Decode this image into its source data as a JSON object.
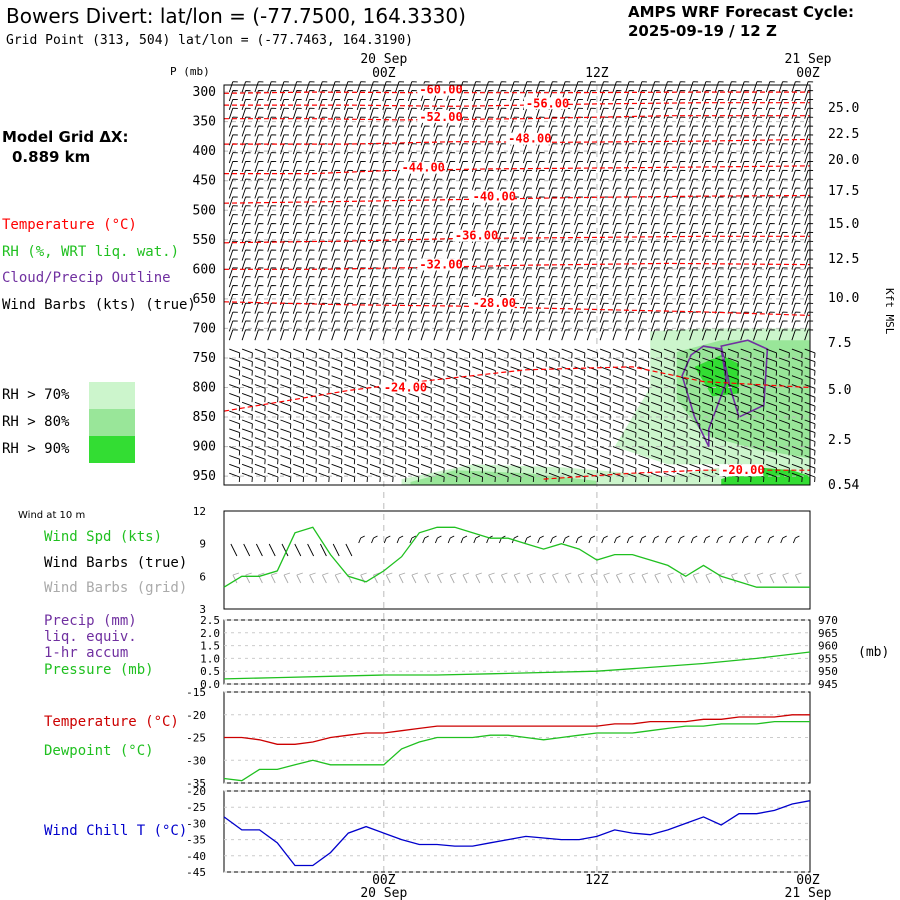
{
  "header": {
    "title": "Bowers Divert:  lat/lon = (-77.7500, 164.3330)",
    "subtitle": "Grid Point (313, 504) lat/lon = (-77.7463, 164.3190)",
    "cycle_line1": "AMPS WRF Forecast Cycle:",
    "cycle_line2": "2025-09-19 / 12  Z"
  },
  "model_grid": {
    "label": "Model Grid ΔX:",
    "value": "0.889 km"
  },
  "legend": {
    "temperature": "Temperature (°C)",
    "rh": "RH (%, WRT liq. wat.)",
    "cloud": "Cloud/Precip Outline",
    "wind": "Wind Barbs (kts) (true)",
    "rh70": "RH > 70%",
    "rh80": "RH > 80%",
    "rh90": "RH > 90%"
  },
  "colors": {
    "temperature": "#ff0000",
    "rh": "#20c020",
    "cloud": "#7030a0",
    "wind_chill": "#0000cc",
    "grid_barbs": "#aaaaaa",
    "rh70": "#ccf5cc",
    "rh80": "#99e699",
    "rh90": "#33dd33"
  },
  "time_axis": {
    "top_date_left": "20 Sep",
    "top_date_right": "21 Sep",
    "bottom_date_left": "20 Sep",
    "bottom_date_right": "21 Sep",
    "ticks": [
      {
        "hours": 12,
        "label": "00Z"
      },
      {
        "hours": 24,
        "label": "12Z"
      },
      {
        "hours": 36,
        "label": "00Z"
      }
    ]
  },
  "chart_data": [
    {
      "type": "contour",
      "panel": "cross-section",
      "ylabel": "P (mb)",
      "ylabel_right": "Kft MSL",
      "xlim_hours": [
        3,
        36
      ],
      "pressure_ticks": [
        300,
        350,
        400,
        450,
        500,
        550,
        600,
        650,
        700,
        750,
        800,
        850,
        900,
        950
      ],
      "height_ticks": [
        "25.0",
        "22.5",
        "20.0",
        "17.5",
        "15.0",
        "12.5",
        "10.0",
        "7.5",
        "5.0",
        "2.5",
        "0.54"
      ],
      "temperature_contours": [
        {
          "label": "-60.00",
          "p": [
            [
              3,
              302
            ],
            [
              8,
              300
            ],
            [
              14,
              301
            ],
            [
              22,
              301
            ],
            [
              30,
              300
            ],
            [
              36,
              300
            ]
          ],
          "label_at": [
            14,
            301
          ]
        },
        {
          "label": "-56.00",
          "p": [
            [
              3,
              322
            ],
            [
              10,
              322
            ],
            [
              16,
              324
            ],
            [
              24,
              320
            ],
            [
              30,
              318
            ],
            [
              36,
              318
            ]
          ],
          "label_at": [
            20,
            324
          ]
        },
        {
          "label": "-52.00",
          "p": [
            [
              3,
              345
            ],
            [
              8,
              345
            ],
            [
              13,
              347
            ],
            [
              20,
              345
            ],
            [
              28,
              340
            ],
            [
              36,
              340
            ]
          ],
          "label_at": [
            14,
            347
          ]
        },
        {
          "label": "-48.00",
          "p": [
            [
              3,
              388
            ],
            [
              10,
              388
            ],
            [
              16,
              384
            ],
            [
              22,
              385
            ],
            [
              30,
              383
            ],
            [
              36,
              380
            ]
          ],
          "label_at": [
            19,
            384
          ]
        },
        {
          "label": "-44.00",
          "p": [
            [
              3,
              438
            ],
            [
              8,
              438
            ],
            [
              12,
              433
            ],
            [
              18,
              430
            ],
            [
              26,
              428
            ],
            [
              36,
              425
            ]
          ],
          "label_at": [
            13,
            433
          ]
        },
        {
          "label": "-40.00",
          "p": [
            [
              3,
              488
            ],
            [
              10,
              485
            ],
            [
              16,
              482
            ],
            [
              24,
              478
            ],
            [
              30,
              476
            ],
            [
              36,
              475
            ]
          ],
          "label_at": [
            17,
            482
          ]
        },
        {
          "label": "-36.00",
          "p": [
            [
              3,
              555
            ],
            [
              10,
              552
            ],
            [
              16,
              548
            ],
            [
              24,
              546
            ],
            [
              30,
              544
            ],
            [
              36,
              544
            ]
          ],
          "label_at": [
            16,
            548
          ]
        },
        {
          "label": "-32.00",
          "p": [
            [
              3,
              600
            ],
            [
              8,
              600
            ],
            [
              14,
              597
            ],
            [
              20,
              593
            ],
            [
              28,
              590
            ],
            [
              36,
              592
            ]
          ],
          "label_at": [
            14,
            597
          ]
        },
        {
          "label": "-28.00",
          "p": [
            [
              3,
              655
            ],
            [
              10,
              660
            ],
            [
              16,
              662
            ],
            [
              24,
              668
            ],
            [
              30,
              672
            ],
            [
              36,
              678
            ]
          ],
          "label_at": [
            17,
            662
          ]
        },
        {
          "label": "-24.00",
          "p": [
            [
              3,
              840
            ],
            [
              6,
              825
            ],
            [
              10,
              805
            ],
            [
              14,
              790
            ],
            [
              20,
              770
            ],
            [
              26,
              765
            ],
            [
              30,
              790
            ],
            [
              36,
              800
            ]
          ],
          "label_at": [
            12,
            805
          ]
        },
        {
          "label": "-20.00",
          "p": [
            [
              21,
              955
            ],
            [
              26,
              945
            ],
            [
              30,
              940
            ],
            [
              36,
              940
            ]
          ],
          "label_at": [
            31,
            945
          ]
        }
      ],
      "rh_shading_levels": [
        70,
        80,
        90
      ],
      "cloud_outline_levels": "closed contours near hour 30-33, 700-900 mb"
    },
    {
      "type": "line",
      "panel": "wind-10m",
      "title": "Wind at 10 m",
      "xlim_hours": [
        3,
        36
      ],
      "ylim": [
        3,
        12
      ],
      "yticks": [
        3,
        6,
        9,
        12
      ],
      "series": [
        {
          "name": "Wind Spd (kts)",
          "x": [
            3,
            4,
            5,
            6,
            7,
            8,
            9,
            10,
            11,
            12,
            13,
            14,
            15,
            16,
            17,
            18,
            19,
            20,
            21,
            22,
            23,
            24,
            25,
            26,
            27,
            28,
            29,
            30,
            31,
            32,
            33,
            34,
            35,
            36
          ],
          "values": [
            5.0,
            6.0,
            6.0,
            6.5,
            10.0,
            10.5,
            8.0,
            6.0,
            5.5,
            6.5,
            7.8,
            10.0,
            10.5,
            10.5,
            10.0,
            9.5,
            9.5,
            9.0,
            8.5,
            9.0,
            8.5,
            7.5,
            8.0,
            8.0,
            7.5,
            7.0,
            6.0,
            7.0,
            6.0,
            5.5,
            5.0,
            5.0,
            5.0,
            5.0
          ]
        }
      ],
      "legend": [
        "Wind Spd (kts)",
        "Wind Barbs (true)",
        "Wind Barbs (grid)"
      ]
    },
    {
      "type": "line",
      "panel": "precip-pressure",
      "xlim_hours": [
        3,
        36
      ],
      "ylim_left": [
        0.0,
        2.5
      ],
      "yticks_left": [
        "0.0",
        "0.5",
        "1.0",
        "1.5",
        "2.0",
        "2.5"
      ],
      "ylim_right": [
        945,
        970
      ],
      "yticks_right": [
        "945",
        "950",
        "955",
        "960",
        "965",
        "970"
      ],
      "ylabel_right": "(mb)",
      "series": [
        {
          "name": "Pressure (mb)",
          "x": [
            3,
            6,
            9,
            12,
            15,
            18,
            21,
            24,
            27,
            30,
            33,
            36
          ],
          "values": [
            947.0,
            947.5,
            948.0,
            948.5,
            948.5,
            949.0,
            949.5,
            950.0,
            951.5,
            953.0,
            955.0,
            957.5
          ]
        }
      ],
      "legend": [
        "Precip (mm)",
        "liq. equiv.",
        "1-hr accum",
        "Pressure (mb)"
      ]
    },
    {
      "type": "line",
      "panel": "temperature-dewpoint",
      "xlim_hours": [
        3,
        36
      ],
      "ylim": [
        -35,
        -15
      ],
      "yticks": [
        -35,
        -30,
        -25,
        -20,
        -15
      ],
      "series": [
        {
          "name": "Temperature (°C)",
          "x": [
            3,
            4,
            5,
            6,
            7,
            8,
            9,
            10,
            11,
            12,
            13,
            14,
            15,
            16,
            17,
            18,
            19,
            20,
            21,
            22,
            23,
            24,
            25,
            26,
            27,
            28,
            29,
            30,
            31,
            32,
            33,
            34,
            35,
            36
          ],
          "values": [
            -25,
            -25,
            -25.5,
            -26.5,
            -26.5,
            -26,
            -25,
            -24.5,
            -24,
            -24,
            -23.5,
            -23,
            -22.5,
            -22.5,
            -22.5,
            -22.5,
            -22.5,
            -22.5,
            -22.5,
            -22.5,
            -22.5,
            -22.5,
            -22,
            -22,
            -21.5,
            -21.5,
            -21.5,
            -21,
            -21,
            -20.5,
            -20.5,
            -20.5,
            -20,
            -20
          ]
        },
        {
          "name": "Dewpoint (°C)",
          "x": [
            3,
            4,
            5,
            6,
            7,
            8,
            9,
            10,
            11,
            12,
            13,
            14,
            15,
            16,
            17,
            18,
            19,
            20,
            21,
            22,
            23,
            24,
            25,
            26,
            27,
            28,
            29,
            30,
            31,
            32,
            33,
            34,
            35,
            36
          ],
          "values": [
            -34,
            -34.5,
            -32,
            -32,
            -31,
            -30,
            -31,
            -31,
            -31,
            -31,
            -27.5,
            -26,
            -25,
            -25,
            -25,
            -24.5,
            -24.5,
            -25,
            -25.5,
            -25,
            -24.5,
            -24,
            -24,
            -24,
            -23.5,
            -23,
            -22.5,
            -22.5,
            -22,
            -22,
            -22,
            -21.5,
            -21.5,
            -21.5
          ]
        }
      ]
    },
    {
      "type": "line",
      "panel": "wind-chill",
      "xlim_hours": [
        3,
        36
      ],
      "ylim": [
        -45,
        -20
      ],
      "yticks": [
        -45,
        -40,
        -35,
        -30,
        -25,
        -20
      ],
      "series": [
        {
          "name": "Wind Chill T (°C)",
          "x": [
            3,
            4,
            5,
            6,
            7,
            8,
            9,
            10,
            11,
            12,
            13,
            14,
            15,
            16,
            17,
            18,
            19,
            20,
            21,
            22,
            23,
            24,
            25,
            26,
            27,
            28,
            29,
            30,
            31,
            32,
            33,
            34,
            35,
            36
          ],
          "values": [
            -28,
            -32,
            -32,
            -36,
            -43,
            -43,
            -39,
            -33,
            -31,
            -33,
            -35,
            -36.5,
            -36.5,
            -37,
            -37,
            -36,
            -35,
            -34,
            -34.5,
            -35,
            -35,
            -34,
            -32,
            -33,
            -33.5,
            -32,
            -30,
            -28,
            -30.5,
            -27,
            -27,
            -26,
            -24,
            -23
          ]
        }
      ]
    }
  ]
}
